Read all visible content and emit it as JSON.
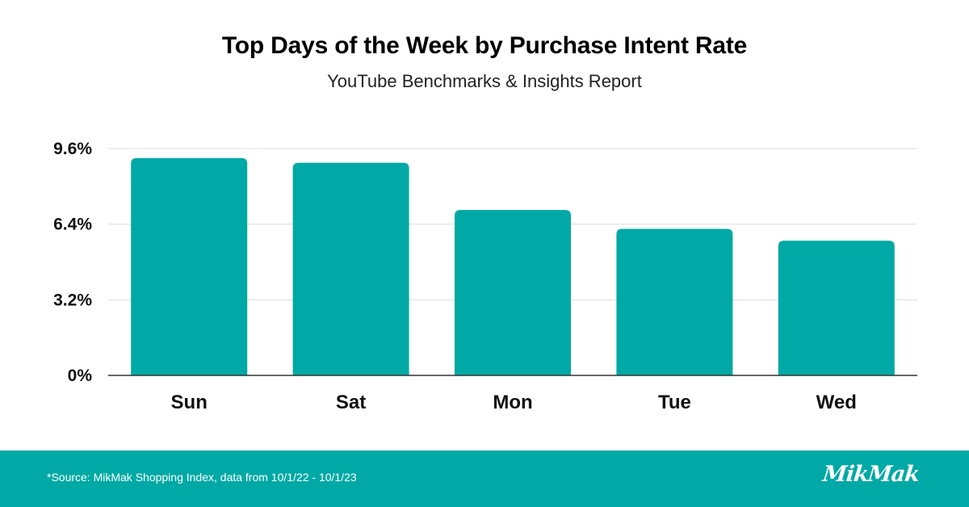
{
  "header": {
    "title": "Top Days of the Week by Purchase Intent Rate",
    "subtitle": "YouTube Benchmarks & Insights Report"
  },
  "footer": {
    "source": "*Source: MikMak Shopping Index, data from 10/1/22 - 10/1/23",
    "brand": "MikMak"
  },
  "colors": {
    "bar": "#00A9A5",
    "footer_bg": "#00A9A5",
    "grid": "#dddddd",
    "axis": "#333333"
  },
  "chart_data": {
    "type": "bar",
    "categories": [
      "Sun",
      "Sat",
      "Mon",
      "Tue",
      "Wed"
    ],
    "values": [
      9.2,
      9.0,
      7.0,
      6.2,
      5.7
    ],
    "ylim": [
      0,
      9.6
    ],
    "yticks": [
      0,
      3.2,
      6.4,
      9.6
    ],
    "ytick_labels": [
      "0%",
      "3.2%",
      "6.4%",
      "9.6%"
    ],
    "grid": true,
    "legend": "none"
  }
}
